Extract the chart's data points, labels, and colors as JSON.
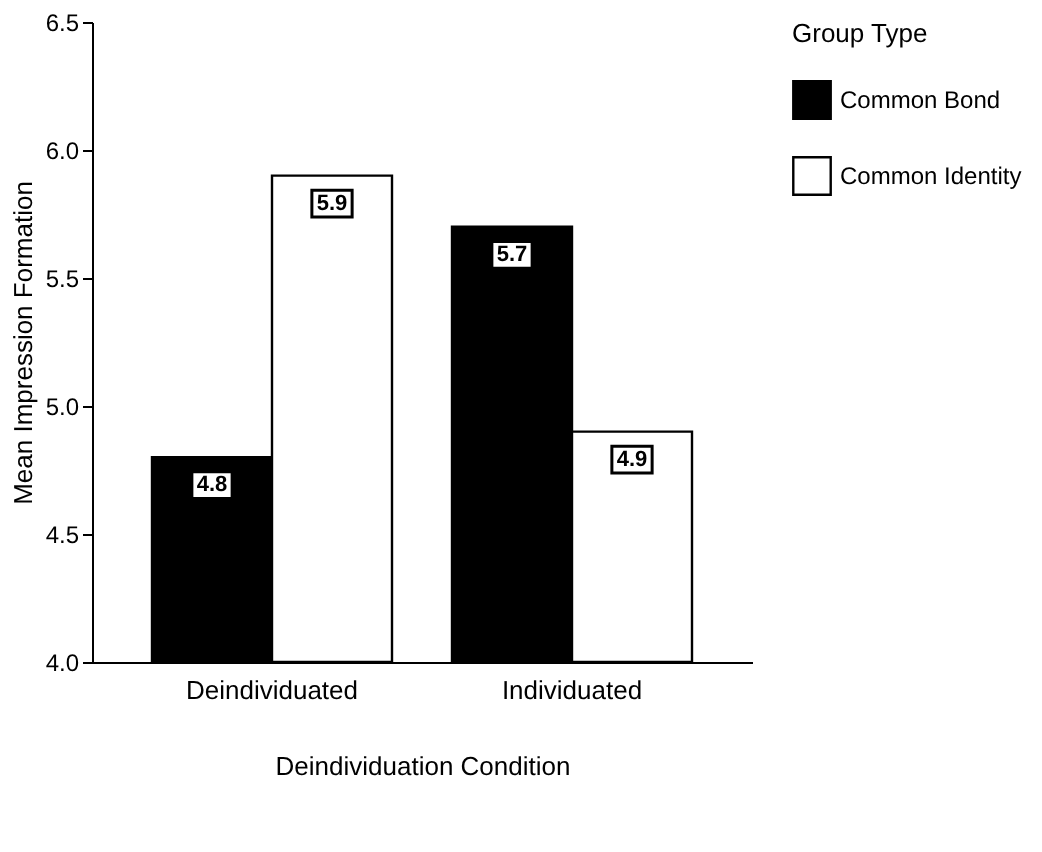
{
  "chart_data": {
    "type": "bar",
    "categories": [
      "Deindividuated",
      "Individuated"
    ],
    "series": [
      {
        "name": "Common Bond",
        "color": "#000000",
        "values": [
          4.8,
          5.7
        ]
      },
      {
        "name": "Common Identity",
        "color": "#ffffff",
        "values": [
          5.9,
          4.9
        ]
      }
    ],
    "xlabel": "Deindividuation Condition",
    "ylabel": "Mean Impression Formation",
    "legend_title": "Group Type",
    "ylim": [
      4.0,
      6.5
    ],
    "yticks": [
      {
        "value": 4.0,
        "label": "4.0"
      },
      {
        "value": 4.5,
        "label": "4.5"
      },
      {
        "value": 5.0,
        "label": "5.0"
      },
      {
        "value": 5.5,
        "label": "5.5"
      },
      {
        "value": 6.0,
        "label": "6.0"
      },
      {
        "value": 6.5,
        "label": "6.5"
      }
    ],
    "data_labels": true,
    "legend": "right",
    "grid": false
  }
}
